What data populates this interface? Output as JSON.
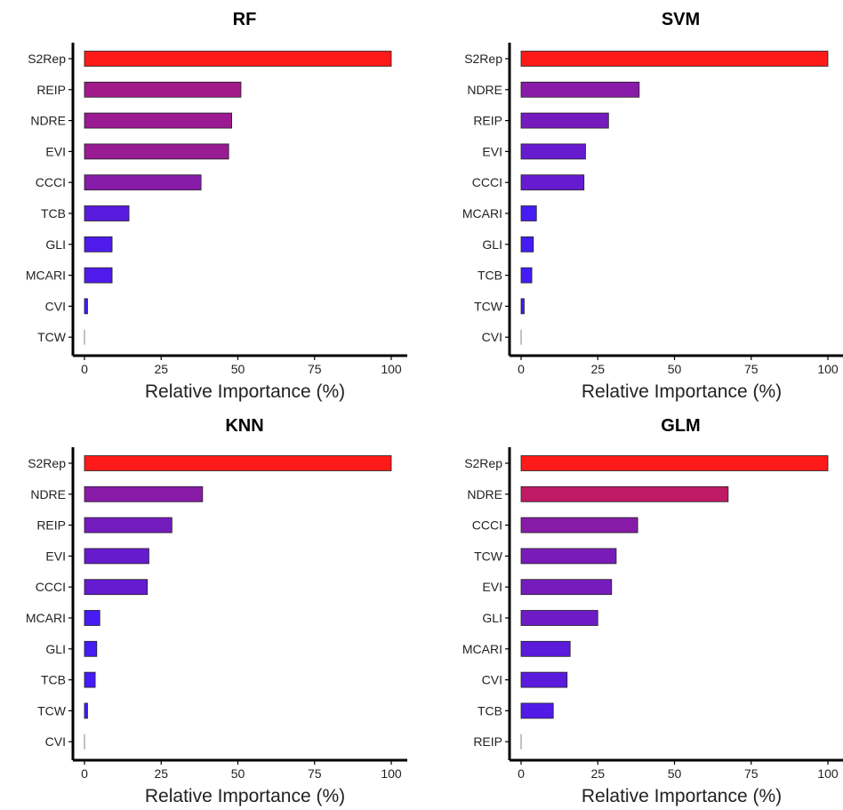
{
  "chart_data": [
    {
      "type": "bar",
      "orientation": "horizontal",
      "title": "RF",
      "xlabel": "Relative Importance (%)",
      "xlim": [
        0,
        100
      ],
      "xticks": [
        0,
        25,
        50,
        75,
        100
      ],
      "categories": [
        "S2Rep",
        "REIP",
        "NDRE",
        "EVI",
        "CCCI",
        "TCB",
        "GLI",
        "MCARI",
        "CVI",
        "TCW"
      ],
      "values": [
        100,
        51,
        48,
        47,
        38,
        14.5,
        9,
        9,
        1,
        0
      ],
      "color_scale": {
        "low": "#3d1bff",
        "high": "#ff1a1a"
      },
      "grid": false
    },
    {
      "type": "bar",
      "orientation": "horizontal",
      "title": "SVM",
      "xlabel": "Relative Importance (%)",
      "xlim": [
        0,
        100
      ],
      "xticks": [
        0,
        25,
        50,
        75,
        100
      ],
      "categories": [
        "S2Rep",
        "NDRE",
        "REIP",
        "EVI",
        "CCCI",
        "MCARI",
        "GLI",
        "TCB",
        "TCW",
        "CVI"
      ],
      "values": [
        100,
        38.5,
        28.5,
        21,
        20.5,
        5,
        4,
        3.5,
        1,
        0
      ],
      "color_scale": {
        "low": "#3d1bff",
        "high": "#ff1a1a"
      },
      "grid": false
    },
    {
      "type": "bar",
      "orientation": "horizontal",
      "title": "KNN",
      "xlabel": "Relative Importance (%)",
      "xlim": [
        0,
        100
      ],
      "xticks": [
        0,
        25,
        50,
        75,
        100
      ],
      "categories": [
        "S2Rep",
        "NDRE",
        "REIP",
        "EVI",
        "CCCI",
        "MCARI",
        "GLI",
        "TCB",
        "TCW",
        "CVI"
      ],
      "values": [
        100,
        38.5,
        28.5,
        21,
        20.5,
        5,
        4,
        3.5,
        1,
        0
      ],
      "color_scale": {
        "low": "#3d1bff",
        "high": "#ff1a1a"
      },
      "grid": false
    },
    {
      "type": "bar",
      "orientation": "horizontal",
      "title": "GLM",
      "xlabel": "Relative Importance (%)",
      "xlim": [
        0,
        100
      ],
      "xticks": [
        0,
        25,
        50,
        75,
        100
      ],
      "categories": [
        "S2Rep",
        "NDRE",
        "CCCI",
        "TCW",
        "EVI",
        "GLI",
        "MCARI",
        "CVI",
        "TCB",
        "REIP"
      ],
      "values": [
        100,
        67.5,
        38,
        31,
        29.5,
        25,
        16,
        15,
        10.5,
        0
      ],
      "color_scale": {
        "low": "#3d1bff",
        "high": "#ff1a1a"
      },
      "grid": false
    }
  ]
}
